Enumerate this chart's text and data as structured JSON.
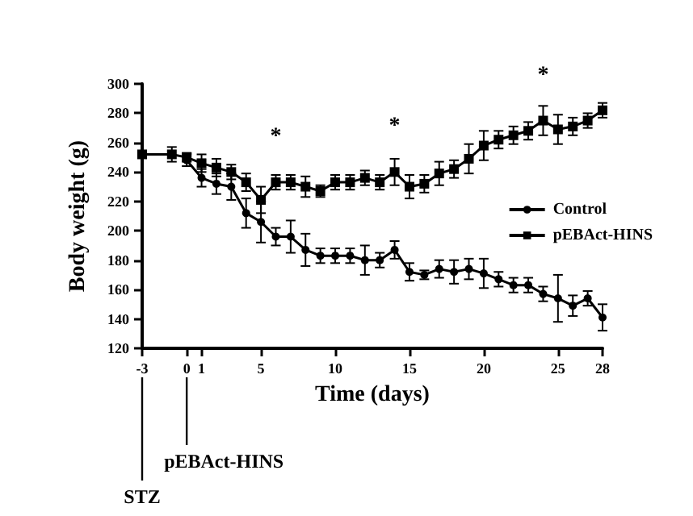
{
  "chart_data": {
    "type": "line",
    "xlabel": "Time (days)",
    "ylabel": "Body weight (g)",
    "x": [
      -3,
      -1,
      0,
      1,
      2,
      3,
      4,
      5,
      6,
      7,
      8,
      9,
      10,
      11,
      12,
      13,
      14,
      15,
      16,
      17,
      18,
      19,
      20,
      21,
      22,
      23,
      24,
      25,
      26,
      27,
      28
    ],
    "series": [
      {
        "name": "Control",
        "color": "#000000",
        "marker": "circle",
        "values": [
          null,
          null,
          248,
          236,
          232,
          230,
          212,
          206,
          196,
          196,
          187,
          183,
          183,
          183,
          180,
          180,
          187,
          172,
          170,
          174,
          172,
          174,
          171,
          167,
          163,
          163,
          157,
          154,
          149,
          154,
          141
        ],
        "errors": [
          null,
          null,
          4,
          6,
          7,
          9,
          10,
          14,
          6,
          11,
          11,
          5,
          5,
          5,
          10,
          5,
          6,
          6,
          3,
          6,
          8,
          7,
          10,
          5,
          5,
          5,
          5,
          16,
          7,
          5,
          9
        ]
      },
      {
        "name": "pEBAct-HINS",
        "color": "#000000",
        "marker": "square",
        "values": [
          252,
          252,
          250,
          246,
          243,
          240,
          233,
          221,
          233,
          233,
          230,
          227,
          233,
          233,
          236,
          233,
          240,
          230,
          232,
          239,
          242,
          249,
          258,
          262,
          265,
          268,
          275,
          269,
          271,
          275,
          282
        ],
        "errors": [
          null,
          5,
          3,
          6,
          6,
          5,
          6,
          9,
          5,
          5,
          7,
          4,
          5,
          5,
          5,
          5,
          9,
          8,
          6,
          8,
          6,
          10,
          10,
          6,
          6,
          6,
          10,
          10,
          6,
          5,
          5
        ]
      }
    ],
    "xlim": [
      -3,
      28
    ],
    "xticks": [
      -3,
      0,
      1,
      5,
      10,
      15,
      20,
      25,
      28
    ],
    "ylim": [
      120,
      300
    ],
    "yticks": [
      120,
      140,
      160,
      180,
      200,
      220,
      240,
      260,
      280,
      300
    ],
    "grid": false,
    "legend": "right",
    "ref_lines": [
      {
        "axis": "x",
        "value": -3,
        "label": "STZ"
      },
      {
        "axis": "x",
        "value": 0,
        "label": "pEBAct-HINS"
      }
    ],
    "annotations": [
      {
        "text": "*",
        "x": 6,
        "y": 233
      },
      {
        "text": "*",
        "x": 14,
        "y": 240
      },
      {
        "text": "*",
        "x": 24,
        "y": 275
      }
    ]
  }
}
